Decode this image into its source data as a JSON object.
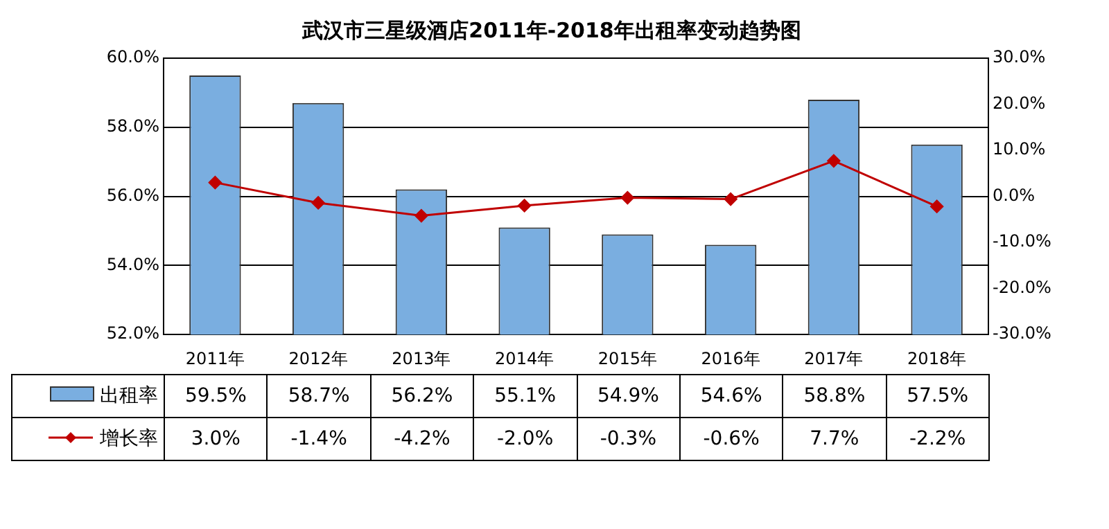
{
  "chart_data": {
    "type": "bar",
    "title": "武汉市三星级酒店2011年-2018年出租率变动趋势图",
    "categories": [
      "2011年",
      "2012年",
      "2013年",
      "2014年",
      "2015年",
      "2016年",
      "2017年",
      "2018年"
    ],
    "series": [
      {
        "name": "出租率",
        "color": "#7aaee0",
        "values": [
          59.5,
          58.7,
          56.2,
          55.1,
          54.9,
          54.6,
          58.8,
          57.5
        ],
        "value_labels": [
          "59.5%",
          "58.7%",
          "56.2%",
          "55.1%",
          "54.9%",
          "54.6%",
          "58.8%",
          "57.5%"
        ]
      },
      {
        "name": "增长率",
        "type": "line",
        "axis": "y2",
        "color": "#c00000",
        "marker": "diamond",
        "values": [
          3.0,
          -1.4,
          -4.2,
          -2.0,
          -0.3,
          -0.6,
          7.7,
          -2.2
        ],
        "value_labels": [
          "3.0%",
          "-1.4%",
          "-4.2%",
          "-2.0%",
          "-0.3%",
          "-0.6%",
          "7.7%",
          "-2.2%"
        ]
      }
    ],
    "ylim": [
      52,
      60
    ],
    "yticks": [
      {
        "value": 52,
        "label": "52.0%"
      },
      {
        "value": 54,
        "label": "54.0%"
      },
      {
        "value": 56,
        "label": "56.0%"
      },
      {
        "value": 58,
        "label": "58.0%"
      },
      {
        "value": 60,
        "label": "60.0%"
      }
    ],
    "y2lim": [
      -30,
      30
    ],
    "y2ticks": [
      {
        "value": -30,
        "label": "-30.0%"
      },
      {
        "value": -20,
        "label": "-20.0%"
      },
      {
        "value": -10,
        "label": "-10.0%"
      },
      {
        "value": 0,
        "label": "0.0%"
      },
      {
        "value": 10,
        "label": "10.0%"
      },
      {
        "value": 20,
        "label": "20.0%"
      },
      {
        "value": 30,
        "label": "30.0%"
      }
    ],
    "grid": "y",
    "legend": "bottom"
  }
}
